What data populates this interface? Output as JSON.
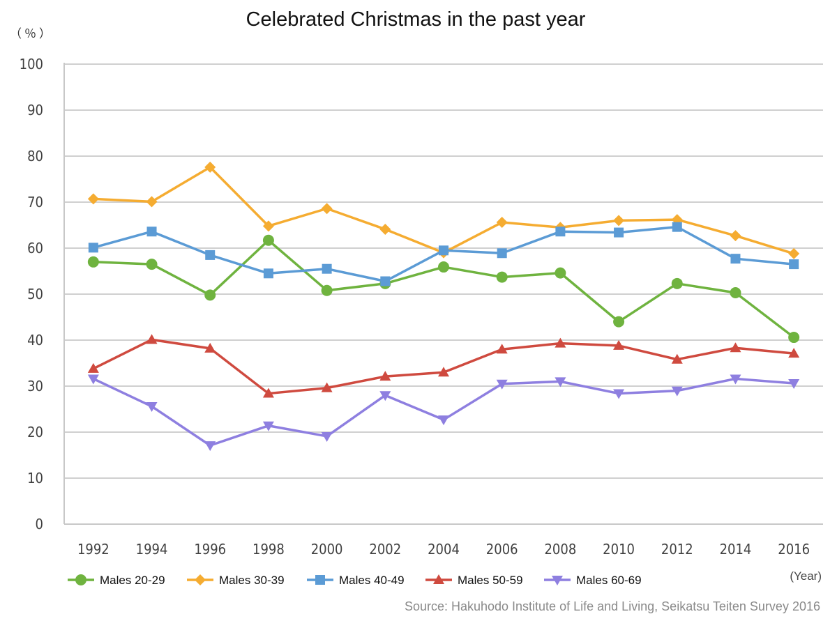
{
  "chart_data": {
    "type": "line",
    "title": "Celebrated Christmas in the past year",
    "y_unit_label": "（％）",
    "x_unit_label": "(Year)",
    "source": "Source: Hakuhodo Institute of Life and Living, Seikatsu Teiten Survey 2016",
    "x": [
      "1992",
      "1994",
      "1996",
      "1998",
      "2000",
      "2002",
      "2004",
      "2006",
      "2008",
      "2010",
      "2012",
      "2014",
      "2016"
    ],
    "y_ticks": [
      "0",
      "10",
      "20",
      "30",
      "40",
      "50",
      "60",
      "70",
      "80",
      "90",
      "100"
    ],
    "ylim": [
      0,
      100
    ],
    "grid": true,
    "legend_position": "bottom",
    "series": [
      {
        "name": "Males 20-29",
        "color": "#6fb33f",
        "marker": "circle",
        "values": [
          57.0,
          56.5,
          49.8,
          61.7,
          50.8,
          52.3,
          55.9,
          53.7,
          54.6,
          44.0,
          52.3,
          50.3,
          40.6
        ]
      },
      {
        "name": "Males 30-39",
        "color": "#f5ac31",
        "marker": "diamond",
        "values": [
          70.7,
          70.1,
          77.6,
          64.8,
          68.6,
          64.1,
          59.0,
          65.6,
          64.5,
          66.0,
          66.2,
          62.7,
          58.8
        ]
      },
      {
        "name": "Males 40-49",
        "color": "#5b9bd5",
        "marker": "square",
        "values": [
          60.1,
          63.6,
          58.5,
          54.5,
          55.5,
          52.8,
          59.5,
          58.9,
          63.6,
          63.4,
          64.6,
          57.7,
          56.5
        ]
      },
      {
        "name": "Males 50-59",
        "color": "#cf4a3f",
        "marker": "triangle-up",
        "values": [
          33.8,
          40.1,
          38.2,
          28.4,
          29.6,
          32.1,
          33.0,
          38.0,
          39.3,
          38.8,
          35.8,
          38.3,
          37.1
        ]
      },
      {
        "name": "Males 60-69",
        "color": "#8e7fe0",
        "marker": "triangle-down",
        "values": [
          31.6,
          25.6,
          17.1,
          21.4,
          19.1,
          28.0,
          22.7,
          30.5,
          31.0,
          28.4,
          29.0,
          31.6,
          30.6
        ]
      }
    ]
  }
}
